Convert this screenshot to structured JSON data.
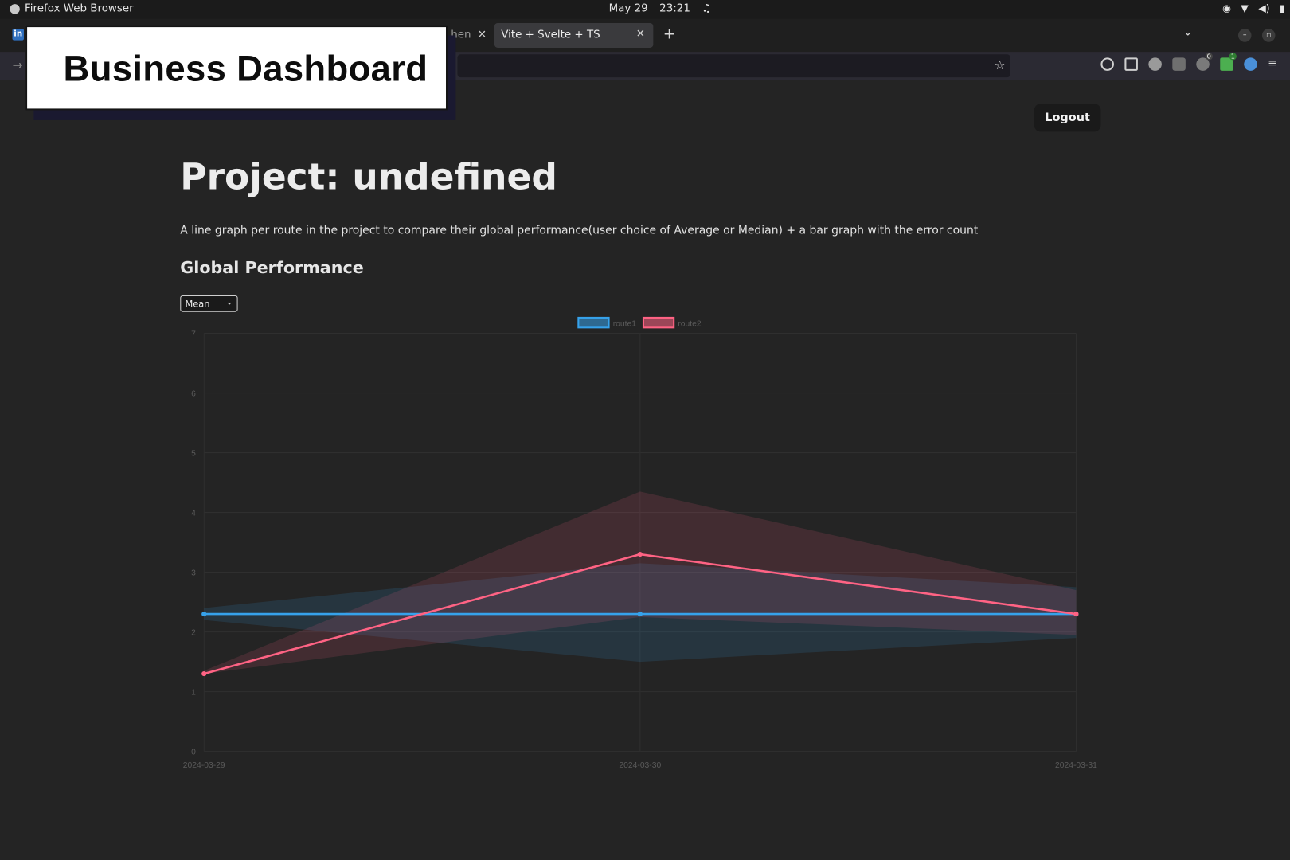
{
  "system": {
    "app_name": "Firefox Web Browser",
    "date": "May 29",
    "time": "23:21"
  },
  "browser": {
    "tab_partial_label": "hen",
    "active_tab_title": "Vite + Svelte + TS",
    "extension_badges": [
      "0",
      "1"
    ]
  },
  "overlay": {
    "title": "Business Dashboard"
  },
  "page": {
    "logout_label": "Logout",
    "title": "Project: undefined",
    "description": "A line graph per route in the project to compare their global performance(user choice of Average or Median) + a bar graph with the error count",
    "section_title": "Global Performance",
    "metric_select": {
      "selected": "Mean"
    }
  },
  "chart_data": {
    "type": "line",
    "x": [
      "2024-03-29",
      "2024-03-30",
      "2024-03-31"
    ],
    "ylim": [
      0,
      7
    ],
    "yticks": [
      "0",
      "1",
      "2",
      "3",
      "4",
      "5",
      "6",
      "7"
    ],
    "grid": true,
    "legend_position": "top",
    "series": [
      {
        "name": "route1",
        "color": "#36a2eb",
        "values": [
          2.3,
          2.3,
          2.3
        ],
        "band_upper": [
          2.4,
          3.15,
          2.75
        ],
        "band_lower": [
          2.2,
          1.5,
          1.9
        ]
      },
      {
        "name": "route2",
        "color": "#ff6384",
        "values": [
          1.3,
          3.3,
          2.3
        ],
        "band_upper": [
          1.35,
          4.35,
          2.7
        ],
        "band_lower": [
          1.3,
          2.25,
          1.95
        ]
      }
    ]
  }
}
